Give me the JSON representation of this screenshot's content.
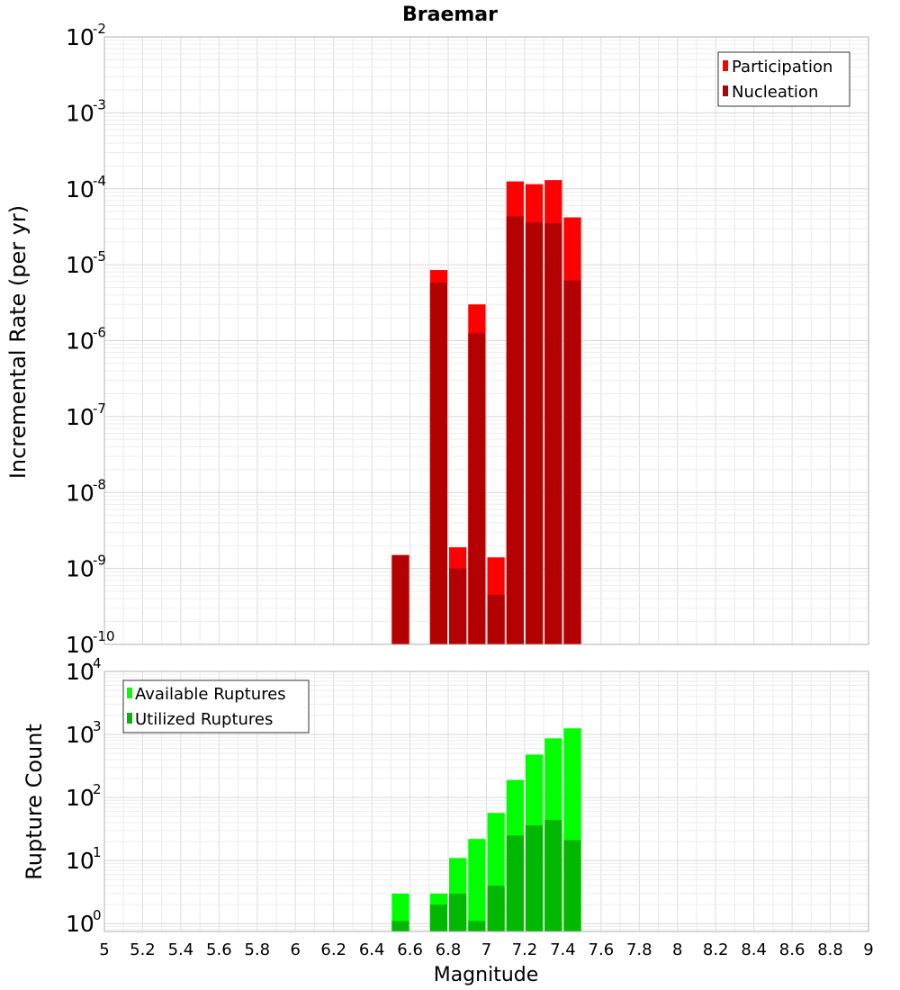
{
  "chart_data": [
    {
      "type": "bar",
      "title": "Braemar",
      "xlabel": "",
      "ylabel": "Incremental Rate (per yr)",
      "yscale": "log",
      "ylim": [
        1e-10,
        0.01
      ],
      "xlim": [
        5,
        9
      ],
      "bar_width": 0.1,
      "yticks": [
        {
          "base": "10",
          "exp": "-2",
          "value": 0.01
        },
        {
          "base": "10",
          "exp": "-3",
          "value": 0.001
        },
        {
          "base": "10",
          "exp": "-4",
          "value": 0.0001
        },
        {
          "base": "10",
          "exp": "-5",
          "value": 1e-05
        },
        {
          "base": "10",
          "exp": "-6",
          "value": 1e-06
        },
        {
          "base": "10",
          "exp": "-7",
          "value": 1e-07
        },
        {
          "base": "10",
          "exp": "-8",
          "value": 1e-08
        },
        {
          "base": "10",
          "exp": "-9",
          "value": 1e-09
        },
        {
          "base": "10",
          "exp": "-10",
          "value": 1e-10
        }
      ],
      "legend": {
        "placement": "top-right"
      },
      "grid": true,
      "series": [
        {
          "name": "Participation",
          "color": "#ff0000",
          "x": [
            6.55,
            6.75,
            6.85,
            6.95,
            7.05,
            7.15,
            7.25,
            7.35,
            7.45
          ],
          "values": [
            1.5e-09,
            8.5e-06,
            1.9e-09,
            3e-06,
            1.4e-09,
            0.000125,
            0.000115,
            0.00013,
            4.2e-05
          ]
        },
        {
          "name": "Nucleation",
          "color": "#b30000",
          "x": [
            6.55,
            6.75,
            6.85,
            6.95,
            7.05,
            7.15,
            7.25,
            7.35,
            7.45
          ],
          "values": [
            1.5e-09,
            5.8e-06,
            1e-09,
            1.25e-06,
            4.5e-10,
            4.3e-05,
            3.6e-05,
            3.5e-05,
            6.2e-06
          ]
        }
      ]
    },
    {
      "type": "bar",
      "title": "",
      "xlabel": "Magnitude",
      "ylabel": "Rupture Count",
      "yscale": "log",
      "ylim": [
        0.75,
        10000
      ],
      "xlim": [
        5,
        9
      ],
      "bar_width": 0.1,
      "yticks": [
        {
          "base": "10",
          "exp": "4",
          "value": 10000
        },
        {
          "base": "10",
          "exp": "3",
          "value": 1000
        },
        {
          "base": "10",
          "exp": "2",
          "value": 100
        },
        {
          "base": "10",
          "exp": "1",
          "value": 10
        },
        {
          "base": "10",
          "exp": "0",
          "value": 1
        }
      ],
      "xticks": [
        "5",
        "5.2",
        "5.4",
        "5.6",
        "5.8",
        "6",
        "6.2",
        "6.4",
        "6.6",
        "6.8",
        "7",
        "7.2",
        "7.4",
        "7.6",
        "7.8",
        "8",
        "8.2",
        "8.4",
        "8.6",
        "8.8",
        "9"
      ],
      "legend": {
        "placement": "top-left"
      },
      "grid": true,
      "series": [
        {
          "name": "Available Ruptures",
          "color": "#00ff00",
          "x": [
            6.55,
            6.75,
            6.85,
            6.95,
            7.05,
            7.15,
            7.25,
            7.35,
            7.45
          ],
          "values": [
            3,
            3,
            11,
            22,
            57,
            190,
            480,
            870,
            1250
          ]
        },
        {
          "name": "Utilized Ruptures",
          "color": "#00b800",
          "x": [
            6.55,
            6.75,
            6.85,
            6.95,
            7.05,
            7.15,
            7.25,
            7.35,
            7.45
          ],
          "values": [
            1.1,
            2,
            3,
            1.1,
            4,
            25,
            36,
            44,
            21
          ]
        }
      ]
    }
  ]
}
